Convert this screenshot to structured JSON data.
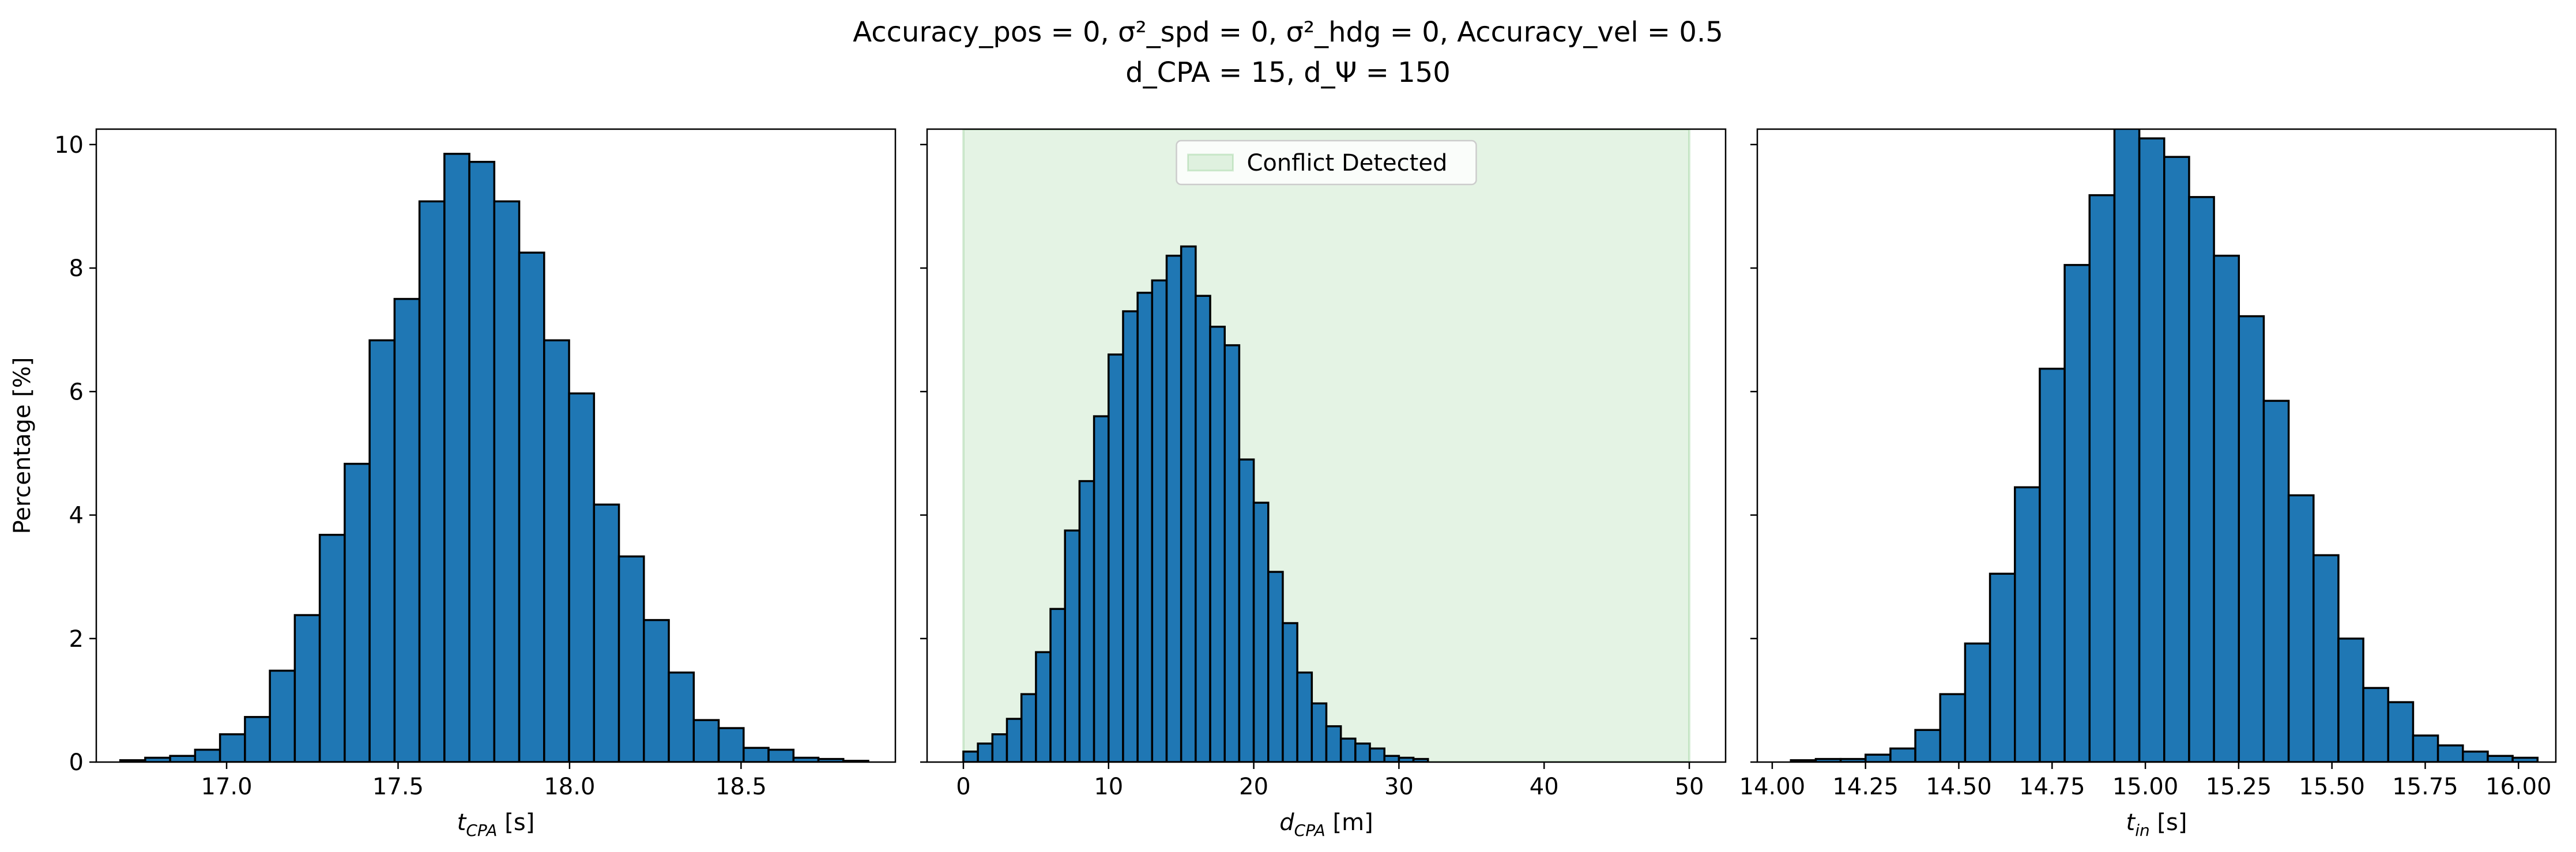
{
  "figure": {
    "title_line1": "Accuracy_pos = 0, σ²_spd = 0, σ²_hdg = 0, Accuracy_vel = 0.5",
    "title_line2": "d_CPA = 15, d_Ψ = 150"
  },
  "colors": {
    "bar_fill": "#1f77b4",
    "bar_edge": "#000000",
    "conflict_span": "#2ca02c"
  },
  "chart_data": [
    {
      "type": "bar",
      "xlabel": "t_CPA [s]",
      "ylabel": "Percentage [%]",
      "xlim": [
        16.62,
        18.95
      ],
      "ylim": [
        0,
        10.25
      ],
      "xticks": [
        17.0,
        17.5,
        18.0,
        18.5
      ],
      "xtick_labels": [
        "17.0",
        "17.5",
        "18.0",
        "18.5"
      ],
      "yticks": [
        0,
        2,
        4,
        6,
        8,
        10
      ],
      "ytick_labels": [
        "0",
        "2",
        "4",
        "6",
        "8",
        "10"
      ],
      "bin_start": 16.69,
      "bin_width": 0.0727,
      "values": [
        0.03,
        0.07,
        0.1,
        0.2,
        0.45,
        0.73,
        1.48,
        2.38,
        3.68,
        4.83,
        6.83,
        7.5,
        9.08,
        9.85,
        9.72,
        9.08,
        8.25,
        6.83,
        5.97,
        4.17,
        3.33,
        2.3,
        1.45,
        0.68,
        0.55,
        0.23,
        0.2,
        0.07,
        0.05,
        0.02
      ]
    },
    {
      "type": "bar",
      "xlabel": "d_CPA [m]",
      "ylabel": "",
      "xlim": [
        -2.5,
        52.5
      ],
      "ylim": [
        0,
        10.25
      ],
      "xticks": [
        0,
        10,
        20,
        30,
        40,
        50
      ],
      "xtick_labels": [
        "0",
        "10",
        "20",
        "30",
        "40",
        "50"
      ],
      "yticks": [
        0,
        2,
        4,
        6,
        8,
        10
      ],
      "bin_start": 0,
      "bin_width": 1.0,
      "values": [
        0.17,
        0.3,
        0.45,
        0.7,
        1.1,
        1.78,
        2.48,
        3.75,
        4.55,
        5.6,
        6.6,
        7.3,
        7.6,
        7.8,
        8.2,
        8.35,
        7.55,
        7.05,
        6.75,
        4.9,
        4.2,
        3.08,
        2.25,
        1.45,
        0.95,
        0.58,
        0.38,
        0.3,
        0.22,
        0.1,
        0.07,
        0.05
      ],
      "span": {
        "x0": 0,
        "x1": 50,
        "label": "Conflict Detected"
      },
      "legend": {
        "position": "upper center",
        "entries": [
          "Conflict Detected"
        ]
      }
    },
    {
      "type": "bar",
      "xlabel": "t_in [s]",
      "ylabel": "",
      "xlim": [
        13.96,
        16.1
      ],
      "ylim": [
        0,
        10.25
      ],
      "xticks": [
        14.0,
        14.25,
        14.5,
        14.75,
        15.0,
        15.25,
        15.5,
        15.75,
        16.0
      ],
      "xtick_labels": [
        "14.00",
        "14.25",
        "14.50",
        "14.75",
        "15.00",
        "15.25",
        "15.50",
        "15.75",
        "16.00"
      ],
      "yticks": [
        0,
        2,
        4,
        6,
        8,
        10
      ],
      "bin_start": 14.05,
      "bin_width": 0.0667,
      "values": [
        0.03,
        0.05,
        0.05,
        0.12,
        0.22,
        0.52,
        1.1,
        1.92,
        3.05,
        4.45,
        6.37,
        8.05,
        9.18,
        10.3,
        10.1,
        9.8,
        9.15,
        8.2,
        7.22,
        5.85,
        4.32,
        3.35,
        2.0,
        1.2,
        0.97,
        0.43,
        0.27,
        0.17,
        0.1,
        0.07
      ]
    }
  ]
}
